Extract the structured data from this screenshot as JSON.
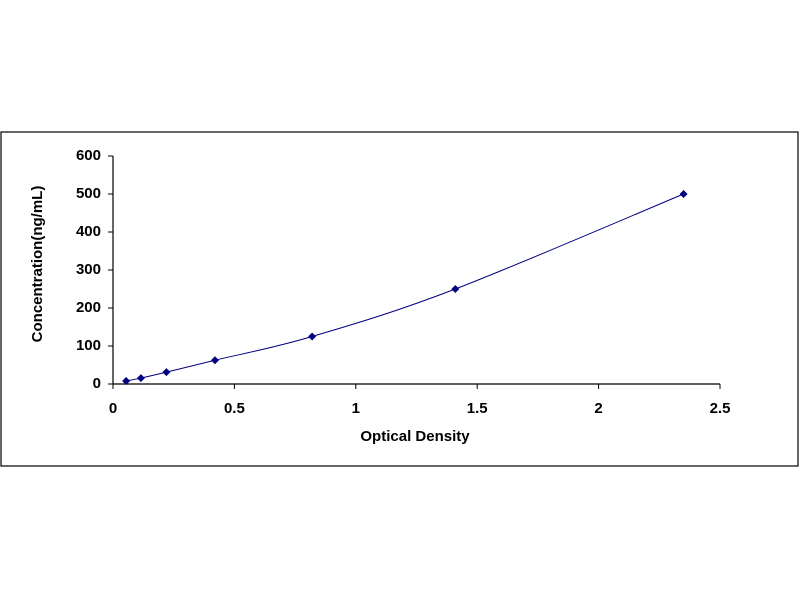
{
  "chart_data": {
    "type": "scatter",
    "line": true,
    "color": "#000080",
    "x_label": "Optical Density",
    "y_label": "Concentration(ng/mL)",
    "x": [
      0.054,
      0.115,
      0.22,
      0.42,
      0.82,
      1.41,
      2.35
    ],
    "values": [
      7.8,
      15.6,
      31.25,
      62.5,
      125,
      250,
      500
    ],
    "xlim": [
      0,
      2.5
    ],
    "xticks": [
      0,
      0.5,
      1,
      1.5,
      2,
      2.5
    ],
    "ylim": [
      0,
      600
    ],
    "yticks": [
      0,
      100,
      200,
      300,
      400,
      500,
      600
    ]
  }
}
